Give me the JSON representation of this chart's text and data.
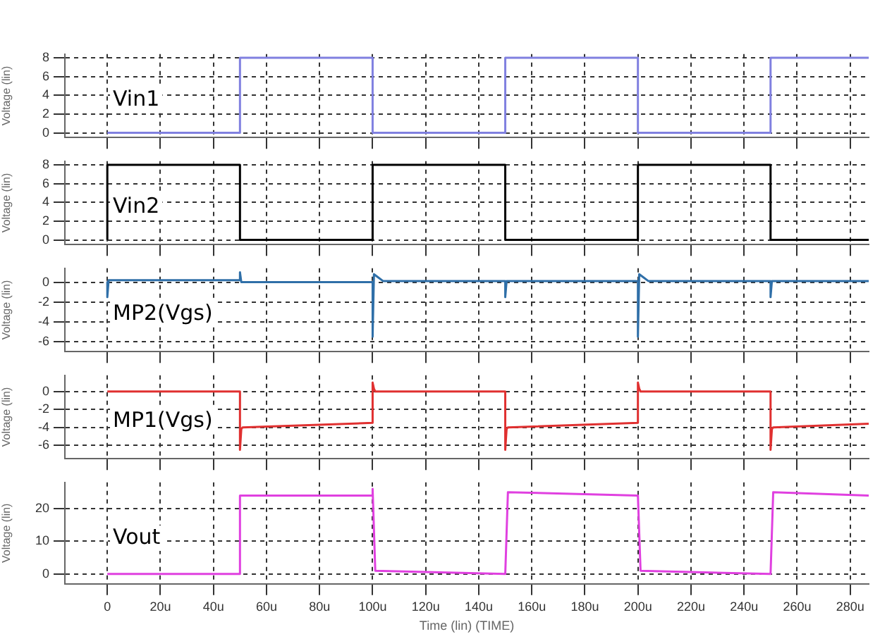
{
  "chart_data": [
    {
      "type": "line",
      "ylabel": "Voltage (lin)",
      "xlim": [
        -16,
        287
      ],
      "ylim": [
        -0.5,
        8.4
      ],
      "yticks": [
        0,
        2,
        4,
        6,
        8
      ],
      "grid": true,
      "tick_labels": "y",
      "series": [
        {
          "name": "Vin1",
          "color": "#8080e0",
          "x": [
            0,
            50,
            50,
            100,
            100,
            150,
            150,
            200,
            200,
            250,
            250,
            287
          ],
          "values": [
            0,
            0,
            8,
            8,
            0,
            0,
            8,
            8,
            0,
            0,
            8,
            8
          ]
        }
      ]
    },
    {
      "type": "line",
      "ylabel": "Voltage (lin)",
      "xlim": [
        -16,
        287
      ],
      "ylim": [
        -0.5,
        8.4
      ],
      "yticks": [
        0,
        2,
        4,
        6,
        8
      ],
      "grid": true,
      "tick_labels": "y",
      "series": [
        {
          "name": "Vin2",
          "color": "#000000",
          "x": [
            0,
            0,
            50,
            50,
            100,
            100,
            150,
            150,
            200,
            200,
            250,
            250,
            287
          ],
          "values": [
            0,
            8,
            8,
            0,
            0,
            8,
            8,
            0,
            0,
            8,
            8,
            0,
            0
          ]
        }
      ]
    },
    {
      "type": "line",
      "ylabel": "Voltage (lin)",
      "xlim": [
        -16,
        287
      ],
      "ylim": [
        -7,
        1.4
      ],
      "yticks": [
        0,
        -2,
        -4,
        -6
      ],
      "grid": true,
      "tick_labels": "y",
      "series": [
        {
          "name": "MP2(Vgs)",
          "color": "#2f6fa8",
          "x": [
            0,
            0,
            0.5,
            50,
            50,
            50.5,
            100,
            100,
            100.5,
            102,
            104,
            150,
            150,
            150.5,
            200,
            200,
            200.5,
            202,
            204,
            250,
            250,
            250.5,
            287
          ],
          "values": [
            0,
            -1.5,
            0.2,
            0.2,
            1,
            0,
            0,
            -5.5,
            0.8,
            0.5,
            0.1,
            0.1,
            -1.5,
            0.1,
            0.1,
            -5.5,
            0.8,
            0.5,
            0.1,
            0.1,
            -1.5,
            0.1,
            0.1
          ]
        }
      ]
    },
    {
      "type": "line",
      "ylabel": "Voltage (lin)",
      "xlim": [
        -16,
        287
      ],
      "ylim": [
        -7.5,
        1.8
      ],
      "yticks": [
        0,
        -2,
        -4,
        -6
      ],
      "grid": true,
      "tick_labels": "y",
      "series": [
        {
          "name": "MP1(Vgs)",
          "color": "#e03030",
          "x": [
            0,
            50,
            50,
            50.5,
            51,
            100,
            100,
            100.5,
            101,
            150,
            150,
            150.5,
            151,
            200,
            200,
            200.5,
            201,
            250,
            250,
            250.5,
            251,
            287
          ],
          "values": [
            0,
            0,
            -6.5,
            -4.2,
            -4,
            -3.5,
            1,
            0.3,
            0,
            0,
            -6.5,
            -4.2,
            -4,
            -3.5,
            1,
            0.3,
            0,
            0,
            -6.5,
            -4.2,
            -4,
            -3.6
          ]
        }
      ]
    },
    {
      "type": "line",
      "xlabel": "Time (lin) (TIME)",
      "ylabel": "Voltage (lin)",
      "xlim": [
        -16,
        287
      ],
      "xticks": [
        0,
        {
          "value": 20,
          "label": "20u"
        },
        {
          "value": 40,
          "label": "40u"
        },
        {
          "value": 60,
          "label": "60u"
        },
        {
          "value": 80,
          "label": "80u"
        },
        {
          "value": 100,
          "label": "100u"
        },
        {
          "value": 120,
          "label": "120u"
        },
        {
          "value": 140,
          "label": "140u"
        },
        {
          "value": 160,
          "label": "160u"
        },
        {
          "value": 180,
          "label": "180u"
        },
        {
          "value": 200,
          "label": "200u"
        },
        {
          "value": 220,
          "label": "220u"
        },
        {
          "value": 240,
          "label": "240u"
        },
        {
          "value": 260,
          "label": "260u"
        },
        {
          "value": 280,
          "label": "280u"
        }
      ],
      "ylim": [
        -3,
        28
      ],
      "yticks": [
        0,
        10,
        20
      ],
      "grid": true,
      "series": [
        {
          "name": "Vout",
          "color": "#e040e0",
          "x": [
            0,
            50,
            50,
            51,
            100,
            100,
            101,
            150,
            150,
            151,
            200,
            200,
            201,
            250,
            250,
            251,
            287
          ],
          "values": [
            0,
            0,
            24,
            24,
            24,
            26,
            1,
            0,
            0,
            25,
            24,
            24,
            1,
            0,
            0,
            25,
            24
          ]
        }
      ]
    }
  ]
}
